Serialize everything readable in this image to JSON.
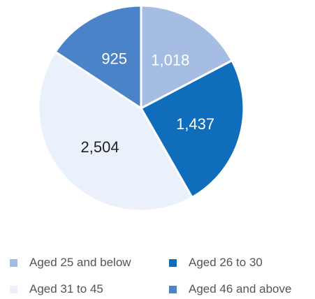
{
  "chart_data": {
    "type": "pie",
    "title": "",
    "categories": [
      "Aged 25 and below",
      "Aged 26 to 30",
      "Aged 31 to 45",
      "Aged 46 and above"
    ],
    "values": [
      1018,
      1437,
      2504,
      925
    ],
    "value_labels": [
      "1,018",
      "1,437",
      "2,504",
      "925"
    ],
    "colors": [
      "#a6bde3",
      "#0f6dbb",
      "#ebf1fa",
      "#4a83c7"
    ],
    "label_colors": [
      "#ffffff",
      "#ffffff",
      "#222222",
      "#ffffff"
    ],
    "start_angle_deg": 0,
    "direction": "clockwise",
    "legend": {
      "placement": "bottom",
      "items": [
        {
          "label": "Aged 25 and below",
          "color": "#a6bde3"
        },
        {
          "label": "Aged 26 to 30",
          "color": "#0f6dbb"
        },
        {
          "label": "Aged 31 to 45",
          "color": "#ebf1fa"
        },
        {
          "label": "Aged 46 and above",
          "color": "#4a83c7"
        }
      ]
    }
  }
}
